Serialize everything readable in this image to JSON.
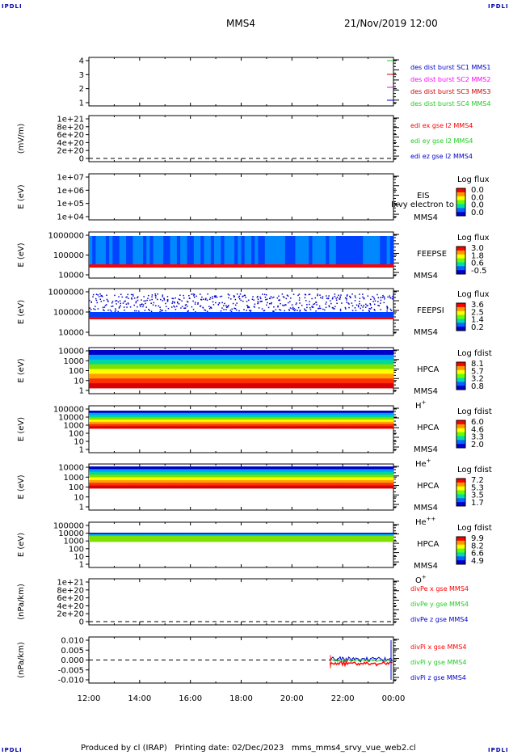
{
  "corner_label": "IPDLI",
  "header": {
    "spacecraft": "MMS4",
    "datetime": "21/Nov/2019 12:00"
  },
  "footer": {
    "produced_by": "Produced by cl (IRAP)",
    "printing_date": "Printing date: 02/Dec/2023",
    "script": "mms_mms4_srvy_vue_web2.cl"
  },
  "x_axis": {
    "ticks": [
      "12:00",
      "14:00",
      "16:00",
      "18:00",
      "20:00",
      "22:00",
      "00:00"
    ]
  },
  "colors": {
    "red": "#ff0000",
    "green": "#22cc22",
    "blue": "#0000cc",
    "magenta": "#ff00ff",
    "purple": "#8b0000"
  },
  "chart_data": [
    {
      "type": "line",
      "title": "",
      "ylabel": "",
      "yticks": [
        "1",
        "2",
        "3",
        "4"
      ],
      "legend": [
        {
          "text": "des dist burst SC1 MMS1",
          "color": "#0000cc"
        },
        {
          "text": "des dist burst SC2 MMS2",
          "color": "#ff00ff"
        },
        {
          "text": "des dist burst SC3 MMS3",
          "color": "#cc0000"
        },
        {
          "text": "des dist burst SC4 MMS4",
          "color": "#22cc22"
        }
      ]
    },
    {
      "type": "line",
      "ylabel": "(mV/m)",
      "yticks": [
        "0",
        "2e+20",
        "4e+20",
        "6e+20",
        "8e+20",
        "1e+21"
      ],
      "legend": [
        {
          "text": "edi ex gse l2 MMS4",
          "color": "#ff0000"
        },
        {
          "text": "edi ey gse l2 MMS4",
          "color": "#22cc22"
        },
        {
          "text": "edi ez gse l2 MMS4",
          "color": "#0000cc"
        }
      ]
    },
    {
      "type": "heatmap",
      "ylabel": "E (eV)",
      "yticks": [
        "1e+04",
        "1e+05",
        "1e+06",
        "1e+07"
      ],
      "instrument": [
        "EIS",
        "MMS4"
      ],
      "overlay": "Ixvy electron to",
      "colorbar": {
        "title": "Log flux",
        "values": [
          "0.0",
          "0.0",
          "0.0",
          "0.0"
        ]
      }
    },
    {
      "type": "heatmap",
      "ylabel": "E (eV)",
      "yticks": [
        "10000",
        "100000",
        "1000000"
      ],
      "instrument": [
        "FEEPSE",
        "MMS4"
      ],
      "colorbar": {
        "title": "Log flux",
        "values": [
          "3.0",
          "1.8",
          "0.6",
          "-0.5"
        ]
      }
    },
    {
      "type": "heatmap",
      "ylabel": "E (eV)",
      "yticks": [
        "10000",
        "100000",
        "1000000"
      ],
      "instrument": [
        "FEEPSI",
        "MMS4"
      ],
      "colorbar": {
        "title": "Log flux",
        "values": [
          "3.6",
          "2.5",
          "1.4",
          "0.2"
        ]
      }
    },
    {
      "type": "heatmap",
      "ylabel": "E (eV)",
      "yticks": [
        "1",
        "10",
        "100",
        "1000",
        "10000"
      ],
      "instrument": [
        "HPCA",
        "MMS4"
      ],
      "species": "H",
      "species_sup": "+",
      "colorbar": {
        "title": "Log fdist",
        "values": [
          "8.1",
          "5.7",
          "3.2",
          "0.8"
        ]
      }
    },
    {
      "type": "heatmap",
      "ylabel": "E (eV)",
      "yticks": [
        "1",
        "10",
        "100",
        "1000",
        "10000",
        "100000"
      ],
      "instrument": [
        "HPCA",
        "MMS4"
      ],
      "species": "He",
      "species_sup": "+",
      "colorbar": {
        "title": "Log fdist",
        "values": [
          "6.0",
          "4.6",
          "3.3",
          "2.0"
        ]
      }
    },
    {
      "type": "heatmap",
      "ylabel": "E (eV)",
      "yticks": [
        "1",
        "10",
        "100",
        "1000",
        "10000"
      ],
      "instrument": [
        "HPCA",
        "MMS4"
      ],
      "species": "He",
      "species_sup": "++",
      "colorbar": {
        "title": "Log fdist",
        "values": [
          "7.2",
          "5.3",
          "3.5",
          "1.7"
        ]
      }
    },
    {
      "type": "heatmap",
      "ylabel": "E (eV)",
      "yticks": [
        "1",
        "10",
        "100",
        "1000",
        "10000",
        "100000"
      ],
      "instrument": [
        "HPCA",
        "MMS4"
      ],
      "species": "O",
      "species_sup": "+",
      "colorbar": {
        "title": "Log fdist",
        "values": [
          "9.9",
          "8.2",
          "6.6",
          "4.9"
        ]
      }
    },
    {
      "type": "line",
      "ylabel": "(nPa/km)",
      "yticks": [
        "0",
        "2e+20",
        "4e+20",
        "6e+20",
        "8e+20",
        "1e+21"
      ],
      "legend": [
        {
          "text": "divPe x gse MMS4",
          "color": "#ff0000"
        },
        {
          "text": "divPe y gse MMS4",
          "color": "#22cc22"
        },
        {
          "text": "divPe z gse MMS4",
          "color": "#0000cc"
        }
      ]
    },
    {
      "type": "line",
      "ylabel": "(nPa/km)",
      "yticks": [
        "-0.010",
        "-0.005",
        "0.000",
        "0.005",
        "0.010"
      ],
      "legend": [
        {
          "text": "divPi x gse MMS4",
          "color": "#ff0000"
        },
        {
          "text": "divPi y gse MMS4",
          "color": "#22cc22"
        },
        {
          "text": "divPi z gse MMS4",
          "color": "#0000cc"
        }
      ]
    }
  ]
}
